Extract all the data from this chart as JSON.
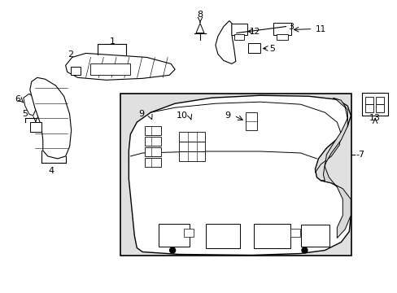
{
  "background_color": "#ffffff",
  "box_bgcolor": "#e0e0e0",
  "line_color": "#000000",
  "figsize": [
    4.89,
    3.6
  ],
  "dpi": 100,
  "xlim": [
    0,
    489
  ],
  "ylim": [
    0,
    360
  ]
}
